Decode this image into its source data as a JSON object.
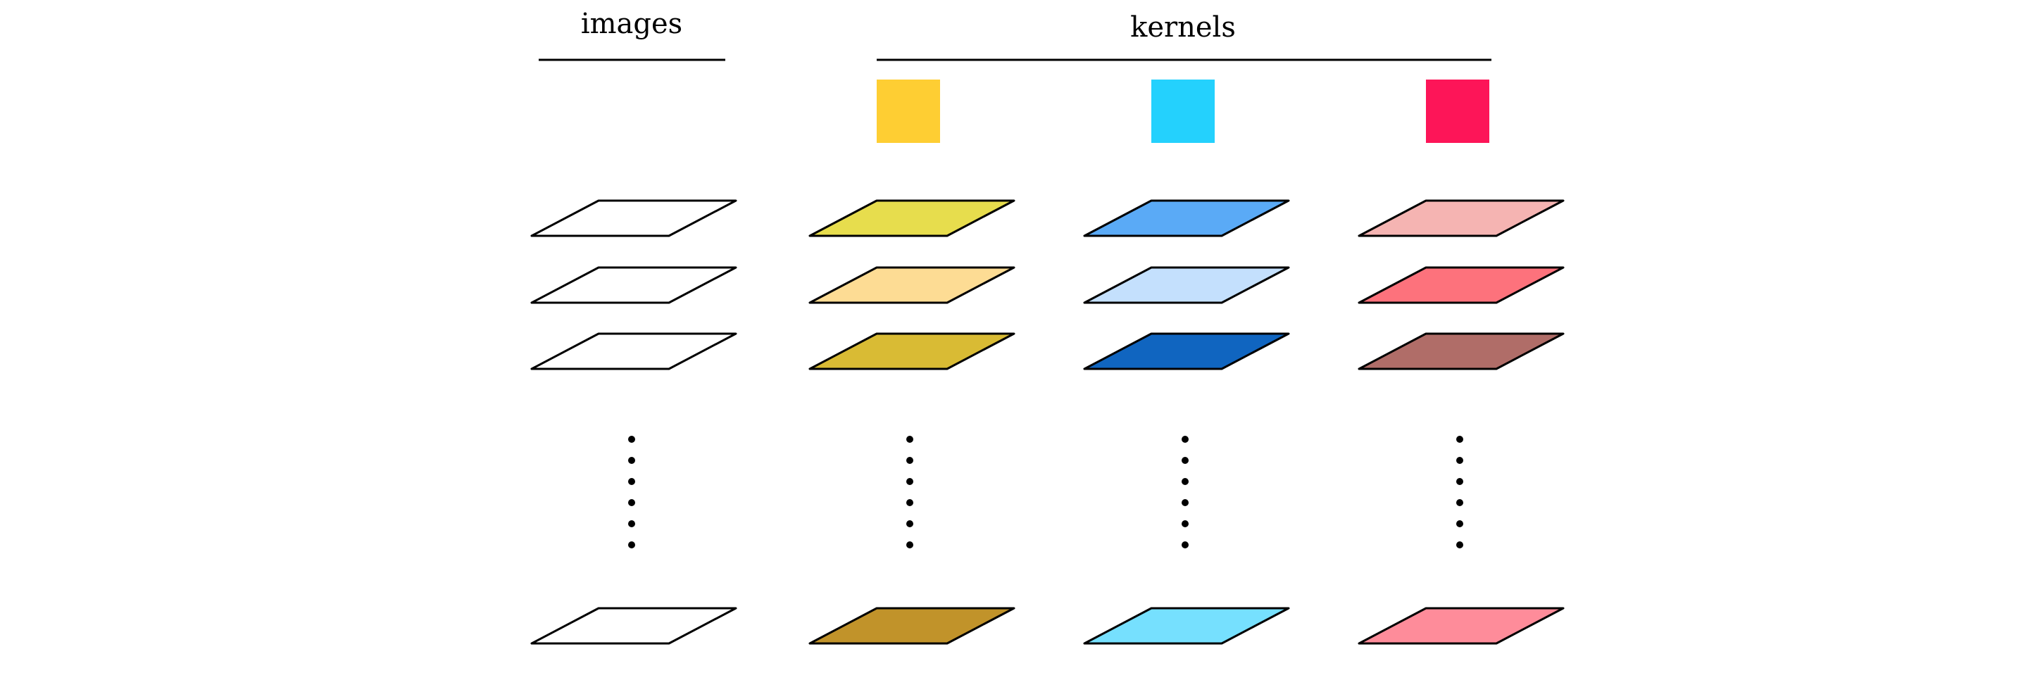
{
  "headings": {
    "images": "images",
    "kernels": "kernels"
  },
  "kernels": [
    {
      "name": "yellow",
      "color": "#FECE33"
    },
    {
      "name": "cyan",
      "color": "#24D1FD"
    },
    {
      "name": "red",
      "color": "#FD1558"
    }
  ],
  "columns": [
    {
      "name": "images",
      "fills": [
        "#FFFFFF",
        "#FFFFFF",
        "#FFFFFF"
      ],
      "last_fill": "#FFFFFF"
    },
    {
      "name": "yellow",
      "fills": [
        "#E7DD4D",
        "#FDDC94",
        "#D9BB34"
      ],
      "last_fill": "#C1932A"
    },
    {
      "name": "cyan",
      "fills": [
        "#5AAAF6",
        "#C4E0FD",
        "#1065C0"
      ],
      "last_fill": "#76E0FE"
    },
    {
      "name": "red",
      "fills": [
        "#F5B4B2",
        "#FD727C",
        "#B06D68"
      ],
      "last_fill": "#FE8C9A"
    }
  ]
}
